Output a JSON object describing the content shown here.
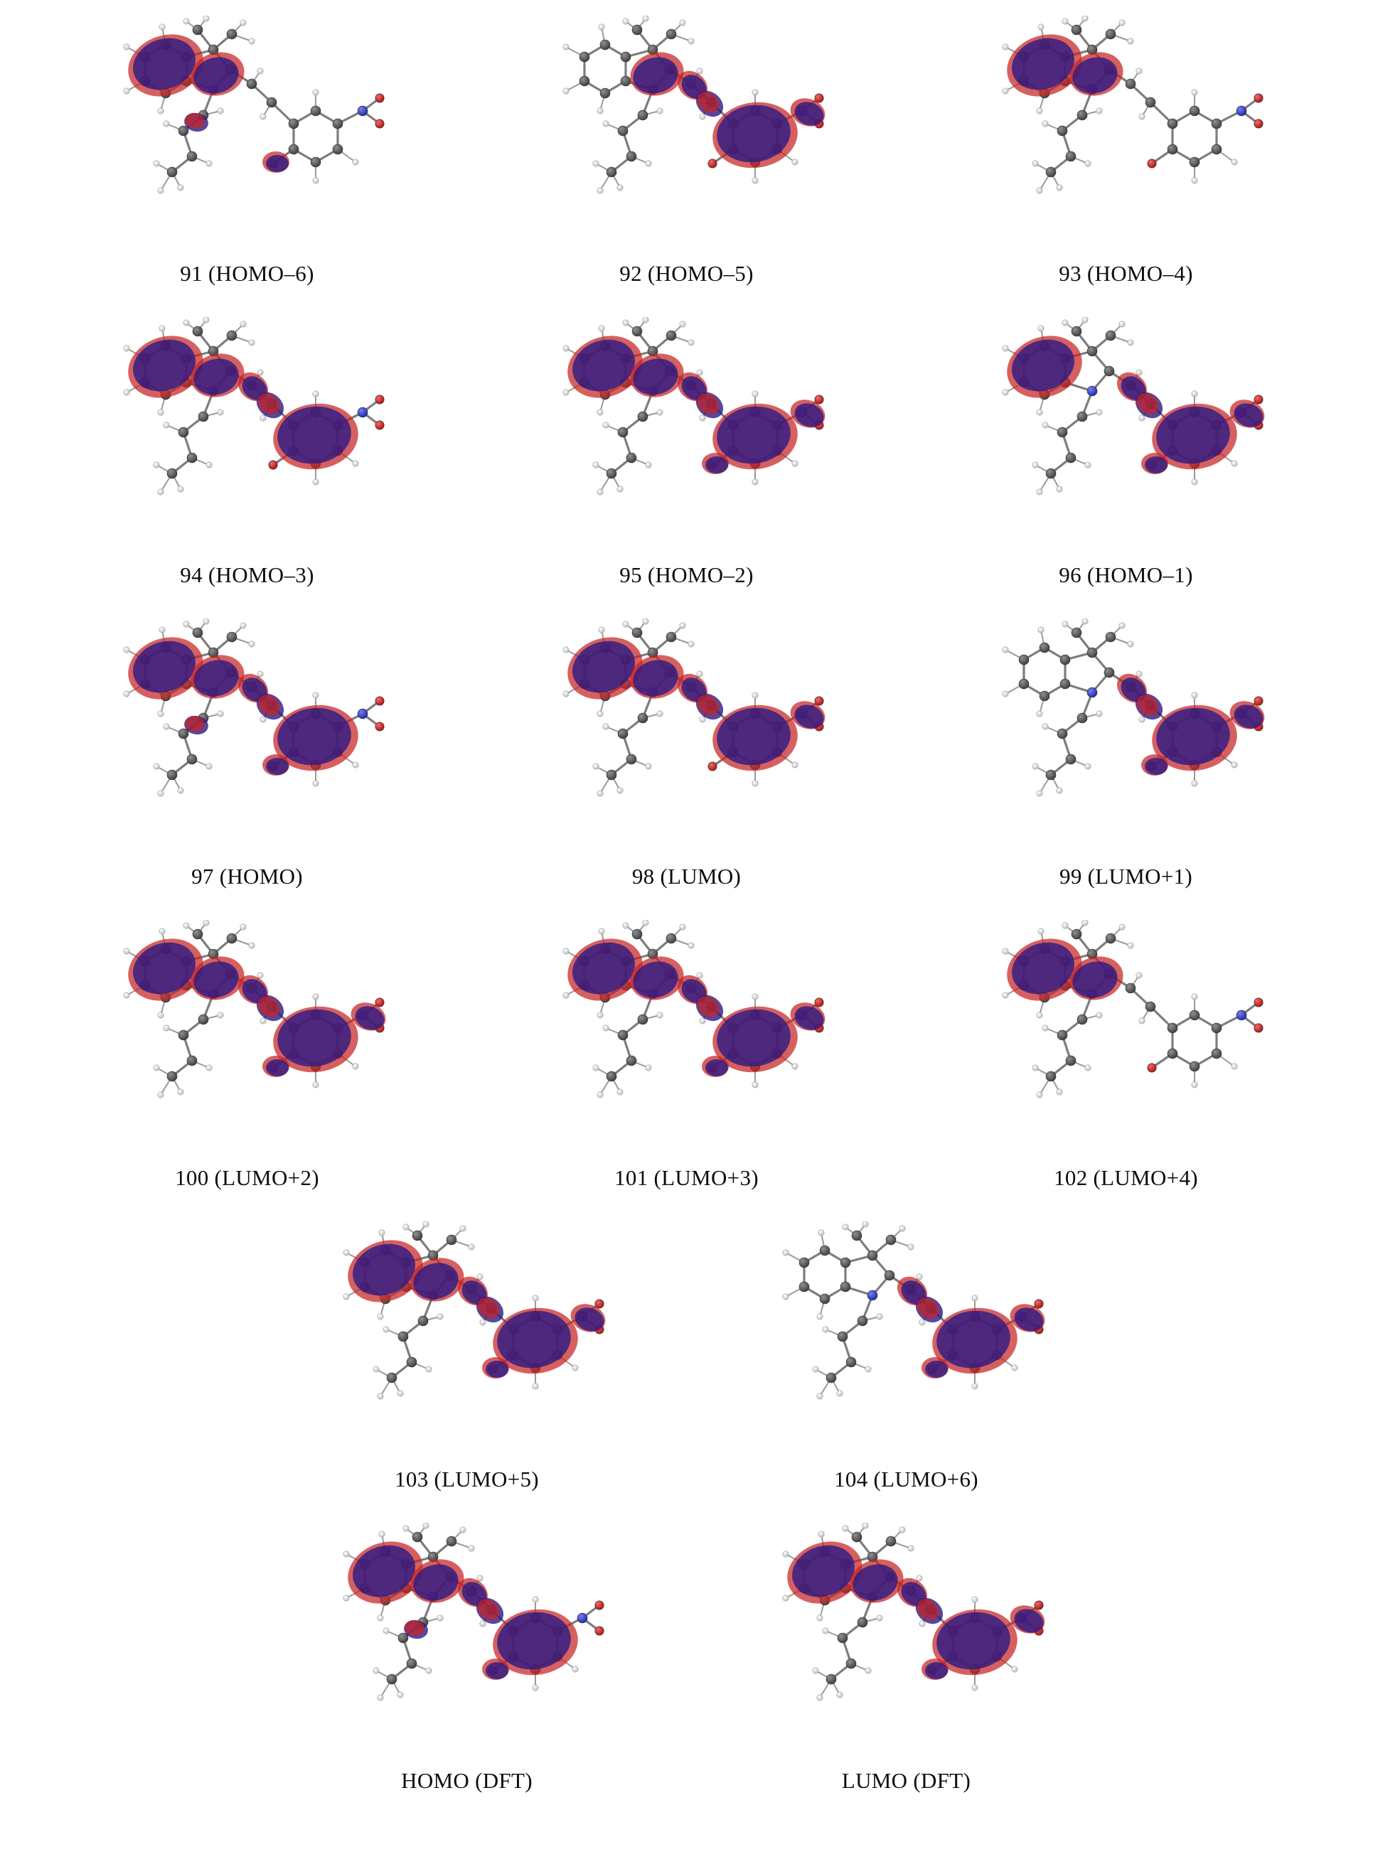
{
  "figure": {
    "kind": "molecular-orbital-isosurfaces",
    "description": "Grid of molecular orbital isosurface renderings over a merocyanine dye (indoline + vinyl bridge + nitro-phenolate), orbitals 91-104 plus DFT HOMO/LUMO"
  },
  "colors": {
    "lobe_positive": "#c62222",
    "lobe_negative": "#2a1a85",
    "carbon": "#4d4d4d",
    "hydrogen": "#d9d9d9",
    "nitrogen": "#2430c8",
    "oxygen": "#cc1a1a",
    "bond": "#7d7d7d",
    "label_text": "#0d0d0d"
  },
  "panels": [
    {
      "label": "91 (HOMO–6)",
      "regions": [
        "benzo",
        "five",
        "butyl",
        "carbonyl"
      ]
    },
    {
      "label": "92 (HOMO–5)",
      "regions": [
        "five",
        "bridge",
        "ring",
        "nitro"
      ]
    },
    {
      "label": "93 (HOMO–4)",
      "regions": [
        "benzo",
        "five"
      ]
    },
    {
      "label": "94 (HOMO–3)",
      "regions": [
        "benzo",
        "five",
        "bridge",
        "ring"
      ]
    },
    {
      "label": "95 (HOMO–2)",
      "regions": [
        "benzo",
        "five",
        "bridge",
        "ring",
        "carbonyl",
        "nitro"
      ]
    },
    {
      "label": "96 (HOMO–1)",
      "regions": [
        "benzo",
        "bridge",
        "ring",
        "carbonyl",
        "nitro"
      ]
    },
    {
      "label": "97 (HOMO)",
      "regions": [
        "benzo",
        "five",
        "butyl",
        "bridge",
        "ring",
        "carbonyl"
      ]
    },
    {
      "label": "98 (LUMO)",
      "regions": [
        "benzo",
        "five",
        "bridge",
        "ring",
        "nitro"
      ]
    },
    {
      "label": "99 (LUMO+1)",
      "regions": [
        "bridge",
        "ring",
        "carbonyl",
        "nitro"
      ]
    },
    {
      "label": "100 (LUMO+2)",
      "regions": [
        "benzo",
        "five",
        "bridge",
        "ring",
        "carbonyl",
        "nitro"
      ]
    },
    {
      "label": "101 (LUMO+3)",
      "regions": [
        "benzo",
        "five",
        "bridge",
        "ring",
        "carbonyl",
        "nitro"
      ]
    },
    {
      "label": "102 (LUMO+4)",
      "regions": [
        "benzo",
        "five"
      ]
    },
    {
      "label": "103 (LUMO+5)",
      "regions": [
        "benzo",
        "five",
        "bridge",
        "ring",
        "carbonyl",
        "nitro"
      ]
    },
    {
      "label": "104 (LUMO+6)",
      "regions": [
        "bridge",
        "ring",
        "carbonyl",
        "nitro"
      ]
    },
    {
      "label": "HOMO (DFT)",
      "regions": [
        "benzo",
        "five",
        "butyl",
        "bridge",
        "ring",
        "carbonyl"
      ]
    },
    {
      "label": "LUMO (DFT)",
      "regions": [
        "benzo",
        "five",
        "bridge",
        "ring",
        "carbonyl",
        "nitro"
      ]
    }
  ]
}
